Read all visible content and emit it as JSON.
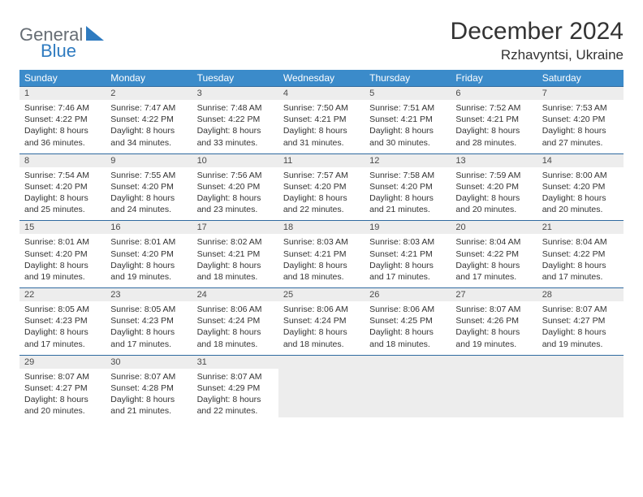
{
  "brand": {
    "name1": "General",
    "name2": "Blue"
  },
  "title": "December 2024",
  "location": "Rzhavyntsi, Ukraine",
  "colors": {
    "header_bg": "#3b8bca",
    "header_text": "#ffffff",
    "rule": "#2f6aa0",
    "daynum_bg": "#ededed",
    "body_bg": "#ffffff",
    "text": "#333333"
  },
  "day_names": [
    "Sunday",
    "Monday",
    "Tuesday",
    "Wednesday",
    "Thursday",
    "Friday",
    "Saturday"
  ],
  "weeks": [
    [
      {
        "n": "1",
        "sr": "Sunrise: 7:46 AM",
        "ss": "Sunset: 4:22 PM",
        "d1": "Daylight: 8 hours",
        "d2": "and 36 minutes."
      },
      {
        "n": "2",
        "sr": "Sunrise: 7:47 AM",
        "ss": "Sunset: 4:22 PM",
        "d1": "Daylight: 8 hours",
        "d2": "and 34 minutes."
      },
      {
        "n": "3",
        "sr": "Sunrise: 7:48 AM",
        "ss": "Sunset: 4:22 PM",
        "d1": "Daylight: 8 hours",
        "d2": "and 33 minutes."
      },
      {
        "n": "4",
        "sr": "Sunrise: 7:50 AM",
        "ss": "Sunset: 4:21 PM",
        "d1": "Daylight: 8 hours",
        "d2": "and 31 minutes."
      },
      {
        "n": "5",
        "sr": "Sunrise: 7:51 AM",
        "ss": "Sunset: 4:21 PM",
        "d1": "Daylight: 8 hours",
        "d2": "and 30 minutes."
      },
      {
        "n": "6",
        "sr": "Sunrise: 7:52 AM",
        "ss": "Sunset: 4:21 PM",
        "d1": "Daylight: 8 hours",
        "d2": "and 28 minutes."
      },
      {
        "n": "7",
        "sr": "Sunrise: 7:53 AM",
        "ss": "Sunset: 4:20 PM",
        "d1": "Daylight: 8 hours",
        "d2": "and 27 minutes."
      }
    ],
    [
      {
        "n": "8",
        "sr": "Sunrise: 7:54 AM",
        "ss": "Sunset: 4:20 PM",
        "d1": "Daylight: 8 hours",
        "d2": "and 25 minutes."
      },
      {
        "n": "9",
        "sr": "Sunrise: 7:55 AM",
        "ss": "Sunset: 4:20 PM",
        "d1": "Daylight: 8 hours",
        "d2": "and 24 minutes."
      },
      {
        "n": "10",
        "sr": "Sunrise: 7:56 AM",
        "ss": "Sunset: 4:20 PM",
        "d1": "Daylight: 8 hours",
        "d2": "and 23 minutes."
      },
      {
        "n": "11",
        "sr": "Sunrise: 7:57 AM",
        "ss": "Sunset: 4:20 PM",
        "d1": "Daylight: 8 hours",
        "d2": "and 22 minutes."
      },
      {
        "n": "12",
        "sr": "Sunrise: 7:58 AM",
        "ss": "Sunset: 4:20 PM",
        "d1": "Daylight: 8 hours",
        "d2": "and 21 minutes."
      },
      {
        "n": "13",
        "sr": "Sunrise: 7:59 AM",
        "ss": "Sunset: 4:20 PM",
        "d1": "Daylight: 8 hours",
        "d2": "and 20 minutes."
      },
      {
        "n": "14",
        "sr": "Sunrise: 8:00 AM",
        "ss": "Sunset: 4:20 PM",
        "d1": "Daylight: 8 hours",
        "d2": "and 20 minutes."
      }
    ],
    [
      {
        "n": "15",
        "sr": "Sunrise: 8:01 AM",
        "ss": "Sunset: 4:20 PM",
        "d1": "Daylight: 8 hours",
        "d2": "and 19 minutes."
      },
      {
        "n": "16",
        "sr": "Sunrise: 8:01 AM",
        "ss": "Sunset: 4:20 PM",
        "d1": "Daylight: 8 hours",
        "d2": "and 19 minutes."
      },
      {
        "n": "17",
        "sr": "Sunrise: 8:02 AM",
        "ss": "Sunset: 4:21 PM",
        "d1": "Daylight: 8 hours",
        "d2": "and 18 minutes."
      },
      {
        "n": "18",
        "sr": "Sunrise: 8:03 AM",
        "ss": "Sunset: 4:21 PM",
        "d1": "Daylight: 8 hours",
        "d2": "and 18 minutes."
      },
      {
        "n": "19",
        "sr": "Sunrise: 8:03 AM",
        "ss": "Sunset: 4:21 PM",
        "d1": "Daylight: 8 hours",
        "d2": "and 17 minutes."
      },
      {
        "n": "20",
        "sr": "Sunrise: 8:04 AM",
        "ss": "Sunset: 4:22 PM",
        "d1": "Daylight: 8 hours",
        "d2": "and 17 minutes."
      },
      {
        "n": "21",
        "sr": "Sunrise: 8:04 AM",
        "ss": "Sunset: 4:22 PM",
        "d1": "Daylight: 8 hours",
        "d2": "and 17 minutes."
      }
    ],
    [
      {
        "n": "22",
        "sr": "Sunrise: 8:05 AM",
        "ss": "Sunset: 4:23 PM",
        "d1": "Daylight: 8 hours",
        "d2": "and 17 minutes."
      },
      {
        "n": "23",
        "sr": "Sunrise: 8:05 AM",
        "ss": "Sunset: 4:23 PM",
        "d1": "Daylight: 8 hours",
        "d2": "and 17 minutes."
      },
      {
        "n": "24",
        "sr": "Sunrise: 8:06 AM",
        "ss": "Sunset: 4:24 PM",
        "d1": "Daylight: 8 hours",
        "d2": "and 18 minutes."
      },
      {
        "n": "25",
        "sr": "Sunrise: 8:06 AM",
        "ss": "Sunset: 4:24 PM",
        "d1": "Daylight: 8 hours",
        "d2": "and 18 minutes."
      },
      {
        "n": "26",
        "sr": "Sunrise: 8:06 AM",
        "ss": "Sunset: 4:25 PM",
        "d1": "Daylight: 8 hours",
        "d2": "and 18 minutes."
      },
      {
        "n": "27",
        "sr": "Sunrise: 8:07 AM",
        "ss": "Sunset: 4:26 PM",
        "d1": "Daylight: 8 hours",
        "d2": "and 19 minutes."
      },
      {
        "n": "28",
        "sr": "Sunrise: 8:07 AM",
        "ss": "Sunset: 4:27 PM",
        "d1": "Daylight: 8 hours",
        "d2": "and 19 minutes."
      }
    ],
    [
      {
        "n": "29",
        "sr": "Sunrise: 8:07 AM",
        "ss": "Sunset: 4:27 PM",
        "d1": "Daylight: 8 hours",
        "d2": "and 20 minutes."
      },
      {
        "n": "30",
        "sr": "Sunrise: 8:07 AM",
        "ss": "Sunset: 4:28 PM",
        "d1": "Daylight: 8 hours",
        "d2": "and 21 minutes."
      },
      {
        "n": "31",
        "sr": "Sunrise: 8:07 AM",
        "ss": "Sunset: 4:29 PM",
        "d1": "Daylight: 8 hours",
        "d2": "and 22 minutes."
      },
      null,
      null,
      null,
      null
    ]
  ]
}
